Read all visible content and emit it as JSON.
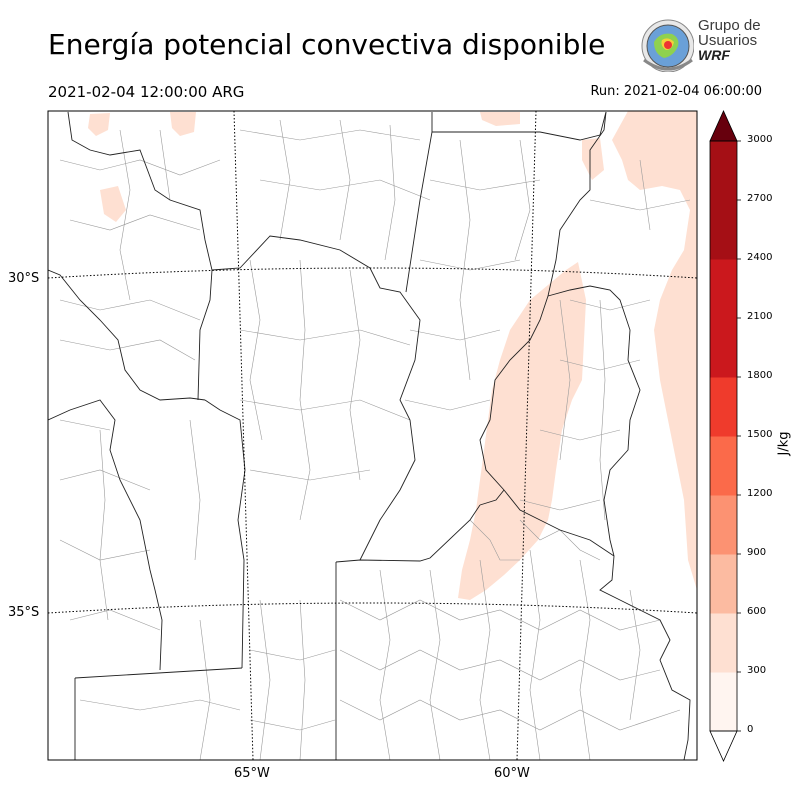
{
  "header": {
    "title": "Energía potencial convectiva disponible",
    "valid_time": "2021-02-04 12:00:00 ARG",
    "run_time": "Run: 2021-02-04 06:00:00"
  },
  "logo": {
    "line1": "Grupo de",
    "line2": "Usuarios",
    "line3": "WRF"
  },
  "map": {
    "lat_labels": [
      "30°S",
      "35°S"
    ],
    "lon_labels": [
      "65°W",
      "60°W"
    ],
    "field": "CAPE",
    "dominant_fill": "#fee0d2"
  },
  "colorbar": {
    "unit": "J/kg",
    "ticks": [
      "0",
      "300",
      "600",
      "900",
      "1200",
      "1500",
      "1800",
      "2100",
      "2400",
      "2700",
      "3000"
    ],
    "colors": [
      "#fff5f0",
      "#fee0d2",
      "#fcbba1",
      "#fc9272",
      "#fb6a4a",
      "#ef3b2c",
      "#cb181d",
      "#cb181d",
      "#a50f15",
      "#a50f15",
      "#67000d"
    ],
    "under_color": "#ffffff",
    "over_color": "#67000d"
  }
}
